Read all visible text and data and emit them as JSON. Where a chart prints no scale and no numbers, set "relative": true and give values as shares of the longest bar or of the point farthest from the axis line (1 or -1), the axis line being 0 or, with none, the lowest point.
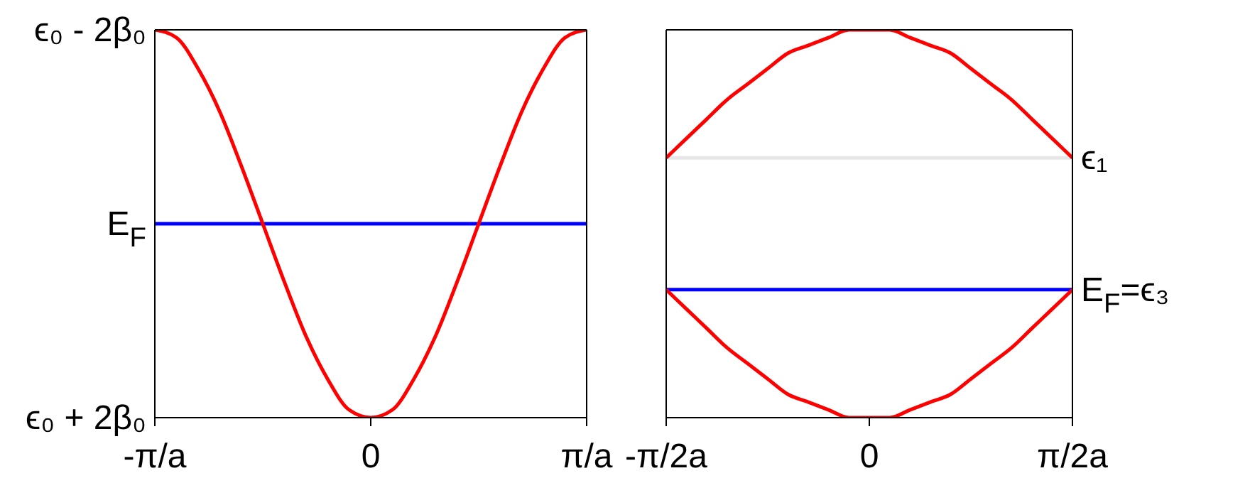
{
  "chart_data": [
    {
      "type": "line",
      "marker": "none",
      "relative": true,
      "categories": [
        "-π/a",
        null,
        null,
        null,
        null,
        null,
        null,
        null,
        null,
        null,
        "0",
        null,
        null,
        null,
        null,
        null,
        null,
        null,
        null,
        null,
        "π/a"
      ],
      "series": [
        {
          "color": "#ff0000",
          "values": [
            1,
            0.98,
            0.9,
            0.79,
            0.65,
            0.5,
            0.35,
            0.21,
            0.1,
            0.02,
            0,
            0.02,
            0.1,
            0.21,
            0.35,
            0.5,
            0.65,
            0.79,
            0.9,
            0.98,
            1
          ]
        }
      ],
      "ref_lines": [
        {
          "axis": "y",
          "value": 0.5,
          "label": "E$_{F}$",
          "color": "#0000ff"
        }
      ],
      "annotations": [
        "ϵ₀ - 2β₀",
        "ϵ₀ + 2β₀"
      ]
    },
    {
      "type": "line",
      "marker": "none",
      "relative": true,
      "categories": [
        "-π/2a",
        null,
        null,
        null,
        null,
        null,
        null,
        null,
        null,
        null,
        "0",
        null,
        null,
        null,
        null,
        null,
        null,
        null,
        null,
        null,
        "π/2a"
      ],
      "series": [
        {
          "color": "#ff0000",
          "values": [
            0.67,
            0.72,
            0.77,
            0.82,
            0.86,
            0.9,
            0.94,
            0.96,
            0.98,
            1,
            1,
            1,
            0.98,
            0.96,
            0.94,
            0.9,
            0.86,
            0.82,
            0.77,
            0.72,
            0.67
          ]
        },
        {
          "color": "#ff0000",
          "values": [
            0.33,
            0.28,
            0.23,
            0.18,
            0.14,
            0.1,
            0.06,
            0.04,
            0.02,
            0,
            0,
            0,
            0.02,
            0.04,
            0.06,
            0.1,
            0.14,
            0.18,
            0.23,
            0.28,
            0.33
          ]
        }
      ],
      "ref_lines": [
        {
          "axis": "y",
          "value": 0.67,
          "label": "ϵ₁",
          "color": "#e6e6e6"
        },
        {
          "axis": "y",
          "value": 0.33,
          "label": "E$_{F}$=ϵ₃",
          "color": "#0000ff"
        }
      ]
    }
  ]
}
